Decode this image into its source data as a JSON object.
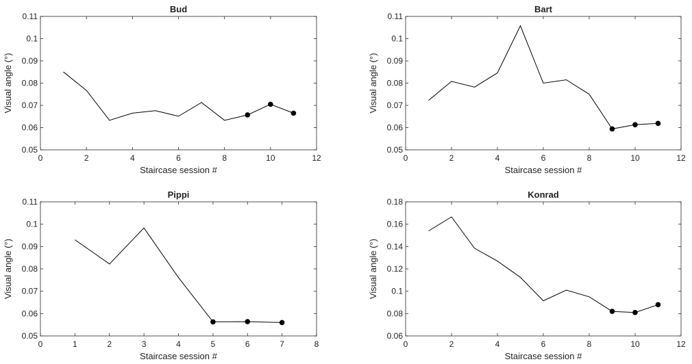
{
  "chart_data": [
    {
      "type": "line",
      "title": "Bud",
      "xlabel": "Staircase session #",
      "ylabel": "Visual angle (°)",
      "xlim": [
        0,
        12
      ],
      "ylim": [
        0.05,
        0.11
      ],
      "xticks": [
        "0",
        "2",
        "4",
        "6",
        "8",
        "10",
        "12"
      ],
      "yticks": [
        "0.05",
        "0.06",
        "0.07",
        "0.08",
        "0.09",
        "0.1",
        "0.11"
      ],
      "x": [
        1,
        2,
        3,
        4,
        5,
        6,
        7,
        8,
        9,
        10,
        11
      ],
      "y": [
        0.085,
        0.0767,
        0.0633,
        0.0665,
        0.0676,
        0.0651,
        0.0713,
        0.0633,
        0.0657,
        0.0705,
        0.0665
      ],
      "marker_x": [
        9,
        10,
        11
      ],
      "marker_y": [
        0.0657,
        0.0705,
        0.0665
      ],
      "grid": false
    },
    {
      "type": "line",
      "title": "Bart",
      "xlabel": "Staircase session #",
      "ylabel": "Visual angle (°)",
      "xlim": [
        0,
        12
      ],
      "ylim": [
        0.05,
        0.11
      ],
      "xticks": [
        "0",
        "2",
        "4",
        "6",
        "8",
        "10",
        "12"
      ],
      "yticks": [
        "0.05",
        "0.06",
        "0.07",
        "0.08",
        "0.09",
        "0.1",
        "0.11"
      ],
      "x": [
        1,
        2,
        3,
        4,
        5,
        6,
        7,
        8,
        9,
        10,
        11
      ],
      "y": [
        0.0722,
        0.0808,
        0.0782,
        0.0846,
        0.1058,
        0.08,
        0.0815,
        0.075,
        0.0594,
        0.0613,
        0.0619
      ],
      "marker_x": [
        9,
        10,
        11
      ],
      "marker_y": [
        0.0594,
        0.0613,
        0.0619
      ],
      "grid": false
    },
    {
      "type": "line",
      "title": "Pippi",
      "xlabel": "Staircase session #",
      "ylabel": "Visual angle (°)",
      "xlim": [
        0,
        8
      ],
      "ylim": [
        0.05,
        0.11
      ],
      "xticks": [
        "0",
        "1",
        "2",
        "3",
        "4",
        "5",
        "6",
        "7",
        "8"
      ],
      "yticks": [
        "0.05",
        "0.06",
        "0.07",
        "0.08",
        "0.09",
        "0.1",
        "0.11"
      ],
      "x": [
        1,
        2,
        3,
        4,
        5,
        6,
        7
      ],
      "y": [
        0.093,
        0.0822,
        0.0983,
        0.0761,
        0.0563,
        0.0564,
        0.056
      ],
      "marker_x": [
        5,
        6,
        7
      ],
      "marker_y": [
        0.0563,
        0.0564,
        0.056
      ],
      "grid": false
    },
    {
      "type": "line",
      "title": "Konrad",
      "xlabel": "Staircase session #",
      "ylabel": "Visual angle (°)",
      "xlim": [
        0,
        12
      ],
      "ylim": [
        0.06,
        0.18
      ],
      "xticks": [
        "0",
        "2",
        "4",
        "6",
        "8",
        "10",
        "12"
      ],
      "yticks": [
        "0.06",
        "0.08",
        "0.1",
        "0.12",
        "0.14",
        "0.16",
        "0.18"
      ],
      "x": [
        1,
        2,
        3,
        4,
        5,
        6,
        7,
        8,
        9,
        10,
        11
      ],
      "y": [
        0.154,
        0.1665,
        0.1385,
        0.127,
        0.1125,
        0.0915,
        0.101,
        0.095,
        0.082,
        0.081,
        0.088
      ],
      "marker_x": [
        9,
        10,
        11
      ],
      "marker_y": [
        0.082,
        0.081,
        0.088
      ],
      "grid": false
    }
  ]
}
